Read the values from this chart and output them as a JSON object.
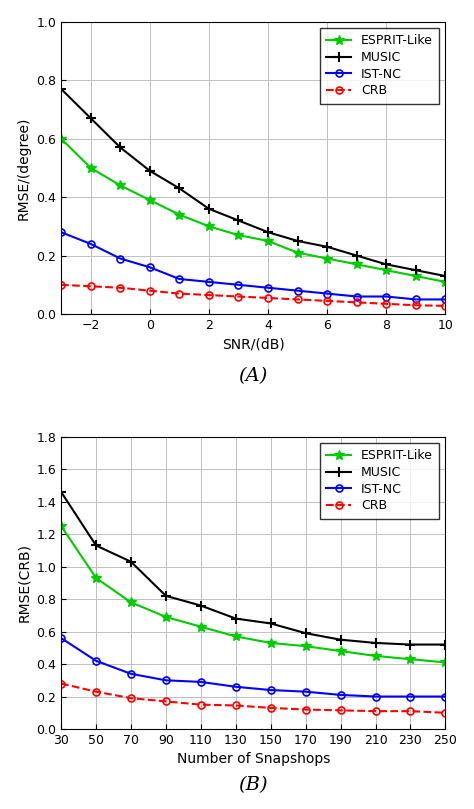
{
  "plot_A": {
    "xlabel": "SNR/(dB)",
    "caption": "(A)",
    "ylabel": "RMSE/(degree)",
    "xlim": [
      -3,
      10
    ],
    "ylim": [
      0,
      1.0
    ],
    "xticks": [
      -2,
      0,
      2,
      4,
      6,
      8,
      10
    ],
    "yticks": [
      0,
      0.2,
      0.4,
      0.6,
      0.8,
      1.0
    ],
    "snr_x": [
      -3,
      -2,
      -1,
      0,
      1,
      2,
      3,
      4,
      5,
      6,
      7,
      8,
      9,
      10
    ],
    "esprit_y": [
      0.6,
      0.5,
      0.44,
      0.39,
      0.34,
      0.3,
      0.27,
      0.25,
      0.21,
      0.19,
      0.17,
      0.15,
      0.13,
      0.11
    ],
    "music_y": [
      0.77,
      0.67,
      0.57,
      0.49,
      0.43,
      0.36,
      0.32,
      0.28,
      0.25,
      0.23,
      0.2,
      0.17,
      0.15,
      0.13
    ],
    "istnc_y": [
      0.28,
      0.24,
      0.19,
      0.16,
      0.12,
      0.11,
      0.1,
      0.09,
      0.08,
      0.07,
      0.06,
      0.06,
      0.05,
      0.05
    ],
    "crb_y": [
      0.1,
      0.095,
      0.09,
      0.08,
      0.07,
      0.065,
      0.06,
      0.055,
      0.05,
      0.045,
      0.04,
      0.035,
      0.03,
      0.028
    ]
  },
  "plot_B": {
    "xlabel": "Number of Snapshops",
    "caption": "(B)",
    "ylabel": "RMSE(CRB)",
    "xlim": [
      30,
      250
    ],
    "ylim": [
      0,
      1.8
    ],
    "xticks": [
      30,
      50,
      70,
      90,
      110,
      130,
      150,
      170,
      190,
      210,
      230,
      250
    ],
    "yticks": [
      0,
      0.2,
      0.4,
      0.6,
      0.8,
      1.0,
      1.2,
      1.4,
      1.6,
      1.8
    ],
    "snap_x": [
      30,
      50,
      70,
      90,
      110,
      130,
      150,
      170,
      190,
      210,
      230,
      250
    ],
    "esprit_y": [
      1.25,
      0.93,
      0.78,
      0.69,
      0.63,
      0.57,
      0.53,
      0.51,
      0.48,
      0.45,
      0.43,
      0.41
    ],
    "music_y": [
      1.46,
      1.13,
      1.03,
      0.82,
      0.76,
      0.68,
      0.65,
      0.59,
      0.55,
      0.53,
      0.52,
      0.52
    ],
    "istnc_y": [
      0.56,
      0.42,
      0.34,
      0.3,
      0.29,
      0.26,
      0.24,
      0.23,
      0.21,
      0.2,
      0.2,
      0.2
    ],
    "crb_y": [
      0.28,
      0.23,
      0.19,
      0.17,
      0.15,
      0.145,
      0.13,
      0.12,
      0.115,
      0.11,
      0.11,
      0.1
    ]
  },
  "colors": {
    "esprit": "#00cc00",
    "music": "#000000",
    "istnc": "#0000ff",
    "crb": "#ff0000"
  },
  "legend_labels": [
    "ESPRIT-Like",
    "MUSIC",
    "IST-NC",
    "CRB"
  ],
  "fontsize_label": 10,
  "fontsize_tick": 9,
  "fontsize_caption": 14,
  "fontsize_legend": 9
}
